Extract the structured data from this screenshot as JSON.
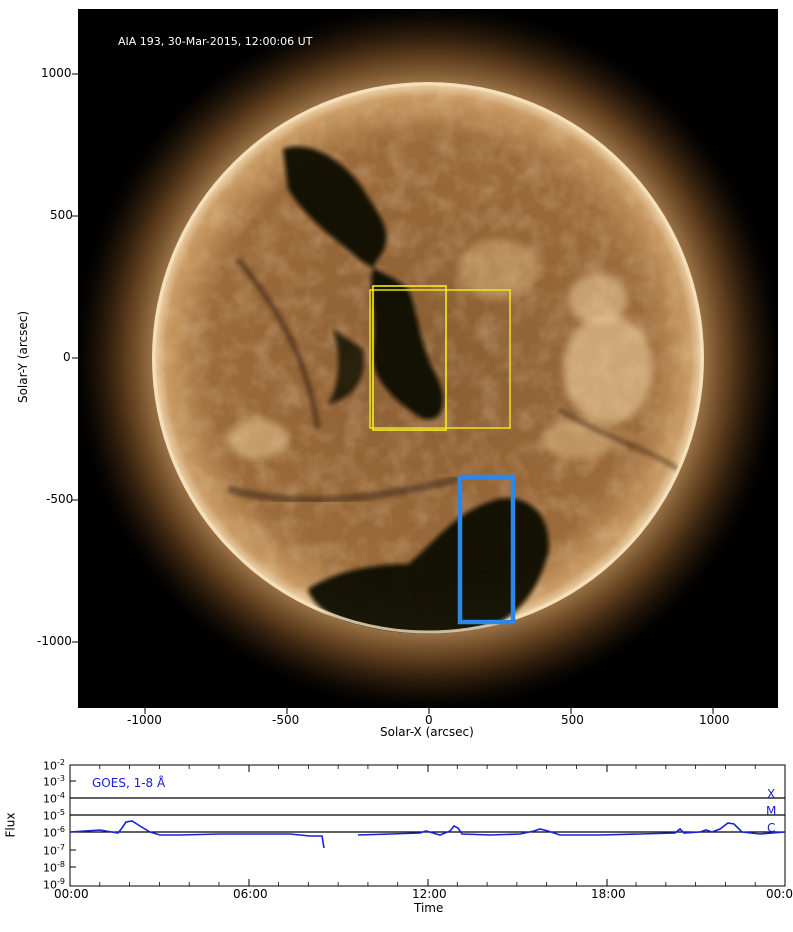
{
  "image": {
    "caption": "AIA 193, 30-Mar-2015, 12:00:06 UT",
    "xlabel": "Solar-X (arcsec)",
    "ylabel": "Solar-Y (arcsec)",
    "x_ticks": [
      "-1000",
      "-500",
      "0",
      "500",
      "1000"
    ],
    "y_ticks": [
      "1000",
      "500",
      "0",
      "-500",
      "-1000"
    ],
    "colors": {
      "background": "#000000",
      "disk": "#9a6a3c",
      "limb": "#f0d6ae",
      "coronal_hole": "#0d0804",
      "box_yellow": "#f2ee1a",
      "box_blue": "#2e86e8"
    },
    "boxes": [
      {
        "name": "yellow-box-narrow",
        "color": "yellow"
      },
      {
        "name": "yellow-box-wide",
        "color": "yellow"
      },
      {
        "name": "blue-box",
        "color": "blue"
      }
    ]
  },
  "goes": {
    "label": "GOES, 1-8 Å",
    "ylabel": "Flux",
    "xlabel": "Time",
    "x_ticks": [
      "00:00",
      "06:00",
      "12:00",
      "18:00",
      "00:0"
    ],
    "y_tick_base": "10",
    "y_tick_exps": [
      "-2",
      "-3",
      "-4",
      "-5",
      "-6",
      "-7",
      "-8",
      "-9"
    ],
    "class_labels": [
      "X",
      "M",
      "C"
    ],
    "curve_color": "#1a22d6"
  }
}
